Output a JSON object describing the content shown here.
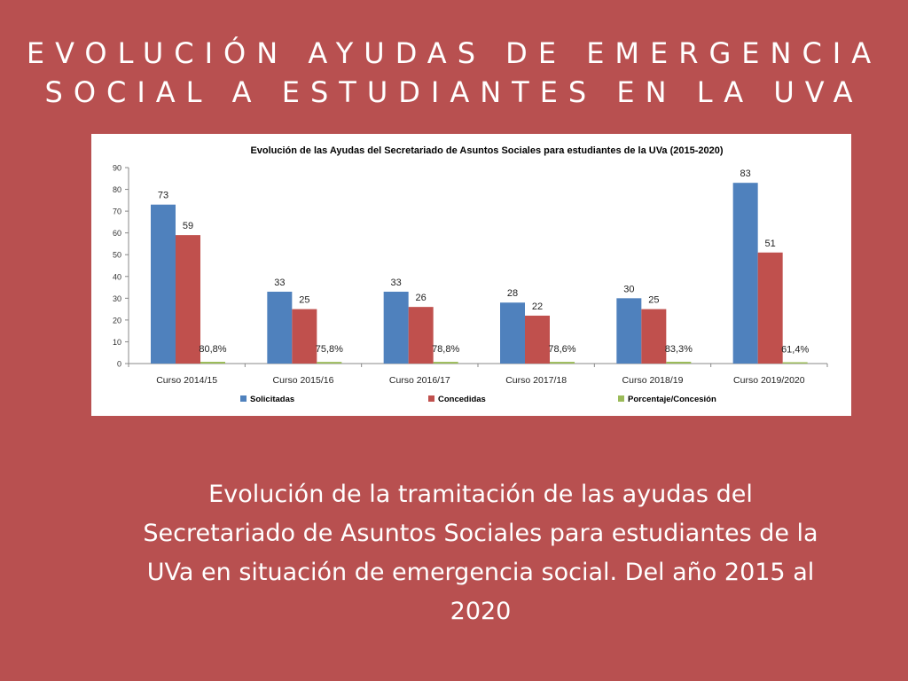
{
  "page": {
    "title_line1": "EVOLUCIÓN AYUDAS DE EMERGENCIA",
    "title_line2": "SOCIAL A ESTUDIANTES EN LA UVA",
    "caption": "Evolución de la tramitación de las ayudas del Secretariado de Asuntos Sociales para estudiantes de la UVa en situación de emergencia social. Del año 2015 al 2020"
  },
  "chart_data": {
    "type": "bar",
    "title": "Evolución de las Ayudas del Secretariado de Asuntos Sociales para estudiantes de la UVa (2015-2020)",
    "categories": [
      "Curso 2014/15",
      "Curso 2015/16",
      "Curso 2016/17",
      "Curso 2017/18",
      "Curso 2018/19",
      "Curso 2019/2020"
    ],
    "series": [
      {
        "name": "Solicitadas",
        "color": "#4f81bd",
        "values": [
          73,
          33,
          33,
          28,
          30,
          83
        ],
        "labels": [
          "73",
          "33",
          "33",
          "28",
          "30",
          "83"
        ]
      },
      {
        "name": "Concedidas",
        "color": "#c0504d",
        "values": [
          59,
          25,
          26,
          22,
          25,
          51
        ],
        "labels": [
          "59",
          "25",
          "26",
          "22",
          "25",
          "51"
        ]
      },
      {
        "name": "Porcentaje/Concesión",
        "color": "#9bbb59",
        "values": [
          0.808,
          0.758,
          0.788,
          0.786,
          0.833,
          0.614
        ],
        "labels": [
          "80,8%",
          "75,8%",
          "78,8%",
          "78,6%",
          "83,3%",
          "61,4%"
        ]
      }
    ],
    "ylim": [
      0,
      90
    ],
    "yticks": [
      0,
      10,
      20,
      30,
      40,
      50,
      60,
      70,
      80,
      90
    ],
    "xlabel": "",
    "ylabel": "",
    "legend": "bottom"
  }
}
